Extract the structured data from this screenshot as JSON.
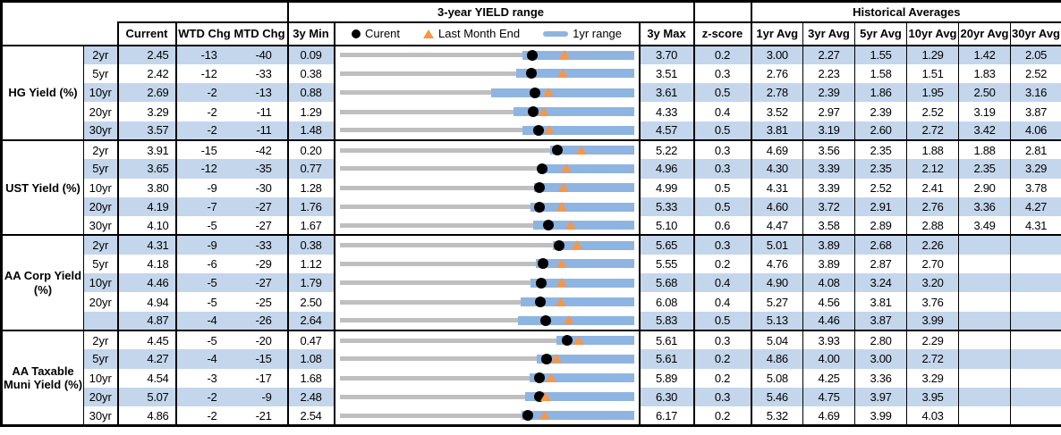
{
  "header": {
    "current": "Current",
    "wtd_chg": "WTD Chg",
    "mtd_chg": "MTD Chg",
    "min3y": "3y Min",
    "max3y": "3y Max",
    "zscore": "z-score",
    "range_title": "3-year YIELD range",
    "hist_title": "Historical Averages",
    "avg": [
      "1yr Avg",
      "3yr Avg",
      "5yr Avg",
      "10yr Avg",
      "20yr Avg",
      "30yr Avg"
    ],
    "legend": {
      "current": "Curent",
      "last_month_end": "Last Month End",
      "range_1yr": "1yr range"
    }
  },
  "colors": {
    "row_shade": "#c4d6ec",
    "range_bar": "#8eb4e2",
    "track": "#bfbfbf",
    "marker_triangle": "#f79646",
    "marker_dot": "#000000"
  },
  "chart_data": {
    "type": "table",
    "title": "3-year YIELD range",
    "legend_entries": [
      "Curent",
      "Last Month End",
      "1yr range"
    ],
    "columns": [
      "Current",
      "WTD Chg",
      "MTD Chg",
      "3y Min",
      "3-year YIELD range",
      "3y Max",
      "z-score",
      "1yr Avg",
      "3yr Avg",
      "5yr Avg",
      "10yr Avg",
      "20yr Avg",
      "30yr Avg"
    ],
    "groups": [
      {
        "label": "HG Yield (%)",
        "rows": [
          {
            "tenor": "2yr",
            "current": "2.45",
            "wtd": "-13",
            "mtd": "-40",
            "min": "0.09",
            "max": "3.70",
            "z": "0.2",
            "avgs": [
              "3.00",
              "2.27",
              "1.55",
              "1.29",
              "1.42",
              "2.05"
            ],
            "low1y": 2.33,
            "lme": 2.85
          },
          {
            "tenor": "5yr",
            "current": "2.42",
            "wtd": "-12",
            "mtd": "-33",
            "min": "0.38",
            "max": "3.51",
            "z": "0.3",
            "avgs": [
              "2.76",
              "2.23",
              "1.58",
              "1.51",
              "1.83",
              "2.52"
            ],
            "low1y": 2.26,
            "lme": 2.75
          },
          {
            "tenor": "10yr",
            "current": "2.69",
            "wtd": "-2",
            "mtd": "-13",
            "min": "0.88",
            "max": "3.61",
            "z": "0.5",
            "avgs": [
              "2.78",
              "2.39",
              "1.86",
              "1.95",
              "2.50",
              "3.16"
            ],
            "low1y": 2.29,
            "lme": 2.82
          },
          {
            "tenor": "20yr",
            "current": "3.29",
            "wtd": "-2",
            "mtd": "-11",
            "min": "1.29",
            "max": "4.33",
            "z": "0.4",
            "avgs": [
              "3.52",
              "2.97",
              "2.39",
              "2.52",
              "3.19",
              "3.87"
            ],
            "low1y": 3.09,
            "lme": 3.4
          },
          {
            "tenor": "30yr",
            "current": "3.57",
            "wtd": "-2",
            "mtd": "-11",
            "min": "1.48",
            "max": "4.57",
            "z": "0.5",
            "avgs": [
              "3.81",
              "3.19",
              "2.60",
              "2.72",
              "3.42",
              "4.06"
            ],
            "low1y": 3.4,
            "lme": 3.68
          }
        ]
      },
      {
        "label": "UST Yield (%)",
        "rows": [
          {
            "tenor": "2yr",
            "current": "3.91",
            "wtd": "-15",
            "mtd": "-42",
            "min": "0.20",
            "max": "5.22",
            "z": "0.3",
            "avgs": [
              "4.69",
              "3.56",
              "2.35",
              "1.88",
              "1.88",
              "2.81"
            ],
            "low1y": 3.8,
            "lme": 4.33
          },
          {
            "tenor": "5yr",
            "current": "3.65",
            "wtd": "-12",
            "mtd": "-35",
            "min": "0.77",
            "max": "4.96",
            "z": "0.3",
            "avgs": [
              "4.30",
              "3.39",
              "2.35",
              "2.12",
              "2.35",
              "3.29"
            ],
            "low1y": 3.6,
            "lme": 4.0
          },
          {
            "tenor": "10yr",
            "current": "3.80",
            "wtd": "-9",
            "mtd": "-30",
            "min": "1.28",
            "max": "4.99",
            "z": "0.5",
            "avgs": [
              "4.31",
              "3.39",
              "2.52",
              "2.41",
              "2.90",
              "3.78"
            ],
            "low1y": 3.73,
            "lme": 4.1
          },
          {
            "tenor": "20yr",
            "current": "4.19",
            "wtd": "-7",
            "mtd": "-27",
            "min": "1.76",
            "max": "5.33",
            "z": "0.5",
            "avgs": [
              "4.60",
              "3.72",
              "2.91",
              "2.76",
              "3.36",
              "4.27"
            ],
            "low1y": 4.08,
            "lme": 4.46
          },
          {
            "tenor": "30yr",
            "current": "4.10",
            "wtd": "-5",
            "mtd": "-27",
            "min": "1.67",
            "max": "5.10",
            "z": "0.6",
            "avgs": [
              "4.47",
              "3.58",
              "2.89",
              "2.88",
              "3.49",
              "4.31"
            ],
            "low1y": 3.93,
            "lme": 4.37
          }
        ]
      },
      {
        "label": "AA Corp Yield (%)",
        "rows": [
          {
            "tenor": "2yr",
            "current": "4.31",
            "wtd": "-9",
            "mtd": "-33",
            "min": "0.38",
            "max": "5.65",
            "z": "0.3",
            "avgs": [
              "5.01",
              "3.89",
              "2.68",
              "2.26",
              "",
              ""
            ],
            "low1y": 4.2,
            "lme": 4.64
          },
          {
            "tenor": "5yr",
            "current": "4.18",
            "wtd": "-6",
            "mtd": "-29",
            "min": "1.12",
            "max": "5.55",
            "z": "0.2",
            "avgs": [
              "4.76",
              "3.89",
              "2.87",
              "2.70",
              "",
              ""
            ],
            "low1y": 4.08,
            "lme": 4.47
          },
          {
            "tenor": "10yr",
            "current": "4.46",
            "wtd": "-5",
            "mtd": "-27",
            "min": "1.79",
            "max": "5.68",
            "z": "0.4",
            "avgs": [
              "4.90",
              "4.08",
              "3.24",
              "3.20",
              "",
              ""
            ],
            "low1y": 4.32,
            "lme": 4.73
          },
          {
            "tenor": "20yr",
            "current": "4.94",
            "wtd": "-5",
            "mtd": "-25",
            "min": "2.50",
            "max": "6.08",
            "z": "0.4",
            "avgs": [
              "5.27",
              "4.56",
              "3.81",
              "3.76",
              "",
              ""
            ],
            "low1y": 4.7,
            "lme": 5.19
          },
          {
            "tenor": "",
            "current": "4.87",
            "wtd": "-4",
            "mtd": "-26",
            "min": "2.64",
            "max": "5.83",
            "z": "0.5",
            "avgs": [
              "5.13",
              "4.46",
              "3.87",
              "3.99",
              "",
              ""
            ],
            "low1y": 4.57,
            "lme": 5.13
          }
        ]
      },
      {
        "label": "AA Taxable Muni Yield (%)",
        "rows": [
          {
            "tenor": "2yr",
            "current": "4.45",
            "wtd": "-5",
            "mtd": "-20",
            "min": "0.47",
            "max": "5.61",
            "z": "0.3",
            "avgs": [
              "5.04",
              "3.93",
              "2.80",
              "2.29",
              "",
              ""
            ],
            "low1y": 4.26,
            "lme": 4.65
          },
          {
            "tenor": "5yr",
            "current": "4.27",
            "wtd": "-4",
            "mtd": "-15",
            "min": "1.08",
            "max": "5.61",
            "z": "0.2",
            "avgs": [
              "4.86",
              "4.00",
              "3.00",
              "2.72",
              "",
              ""
            ],
            "low1y": 4.11,
            "lme": 4.42
          },
          {
            "tenor": "10yr",
            "current": "4.54",
            "wtd": "-3",
            "mtd": "-17",
            "min": "1.68",
            "max": "5.89",
            "z": "0.2",
            "avgs": [
              "5.08",
              "4.25",
              "3.36",
              "3.29",
              "",
              ""
            ],
            "low1y": 4.4,
            "lme": 4.71
          },
          {
            "tenor": "20yr",
            "current": "5.07",
            "wtd": "-2",
            "mtd": "-9",
            "min": "2.48",
            "max": "6.30",
            "z": "0.3",
            "avgs": [
              "5.46",
              "4.75",
              "3.97",
              "3.95",
              "",
              ""
            ],
            "low1y": 4.89,
            "lme": 5.16
          },
          {
            "tenor": "30yr",
            "current": "4.86",
            "wtd": "-2",
            "mtd": "-21",
            "min": "2.54",
            "max": "6.17",
            "z": "0.2",
            "avgs": [
              "5.32",
              "4.69",
              "3.99",
              "4.03",
              "",
              ""
            ],
            "low1y": 4.78,
            "lme": 5.07
          }
        ]
      }
    ]
  }
}
